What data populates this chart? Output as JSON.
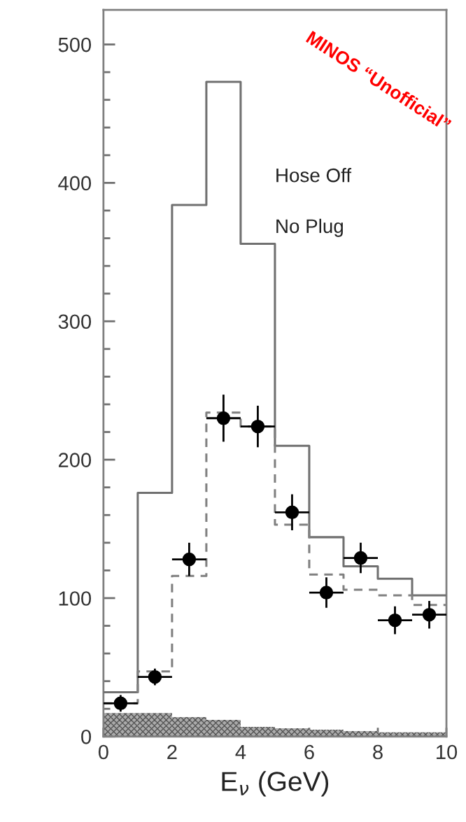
{
  "chart_data": {
    "type": "step",
    "xlabel": "E$_{ν}$ (GeV)",
    "bins": [
      0,
      1,
      2,
      3,
      4,
      5,
      6,
      7,
      8,
      9,
      10
    ],
    "series": [
      {
        "color": "#707070",
        "line_style": "solid",
        "x": [
          0,
          1,
          2,
          3,
          4,
          5,
          6,
          7,
          8,
          9,
          10
        ],
        "values": [
          32,
          176,
          384,
          473,
          356,
          210,
          144,
          123,
          114,
          102,
          102
        ]
      },
      {
        "color": "#808080",
        "line_style": "dashed",
        "x": [
          0,
          1,
          2,
          3,
          4,
          5,
          6,
          7,
          8,
          9,
          10
        ],
        "values": [
          24,
          47,
          116,
          234,
          224,
          153,
          117,
          106,
          102,
          95,
          95
        ]
      },
      {
        "type": "histogram",
        "color": "#555555",
        "values": [
          17,
          17,
          14,
          12,
          7,
          6,
          5,
          4,
          3,
          3
        ]
      },
      {
        "type": "scatter",
        "color": "#000000",
        "marker": "circle",
        "x": [
          0.5,
          1.5,
          2.5,
          3.5,
          4.5,
          5.5,
          6.5,
          7.5,
          8.5,
          9.5
        ],
        "values": [
          24,
          43,
          128,
          230,
          224,
          162,
          104,
          129,
          84,
          88
        ],
        "errors": [
          6,
          6,
          12,
          17,
          15,
          13,
          11,
          11,
          10,
          10
        ],
        "xerrors": [
          0.5,
          0.5,
          0.5,
          0.5,
          0.5,
          0.5,
          0.5,
          0.5,
          0.5,
          0.5
        ]
      }
    ],
    "xlim": [
      0,
      10
    ],
    "ylim": [
      0,
      525
    ],
    "xticks": [
      0,
      2,
      4,
      6,
      8,
      10
    ],
    "yticks": [
      0,
      {
        "value": 20,
        "label": null
      },
      {
        "value": 40,
        "label": null
      },
      {
        "value": 60,
        "label": null
      },
      {
        "value": 80,
        "label": null
      },
      100,
      {
        "value": 120,
        "label": null
      },
      {
        "value": 140,
        "label": null
      },
      {
        "value": 160,
        "label": null
      },
      {
        "value": 180,
        "label": null
      },
      200,
      {
        "value": 220,
        "label": null
      },
      {
        "value": 240,
        "label": null
      },
      {
        "value": 260,
        "label": null
      },
      {
        "value": 280,
        "label": null
      },
      300,
      {
        "value": 320,
        "label": null
      },
      {
        "value": 340,
        "label": null
      },
      {
        "value": 360,
        "label": null
      },
      {
        "value": 380,
        "label": null
      },
      400,
      {
        "value": 420,
        "label": null
      },
      {
        "value": 440,
        "label": null
      },
      {
        "value": 460,
        "label": null
      },
      {
        "value": 480,
        "label": null
      },
      500
    ],
    "grid": false,
    "legend": false,
    "annotations": [
      "MINOS “Unofficial”",
      "Hose Off",
      "No Plug"
    ]
  }
}
